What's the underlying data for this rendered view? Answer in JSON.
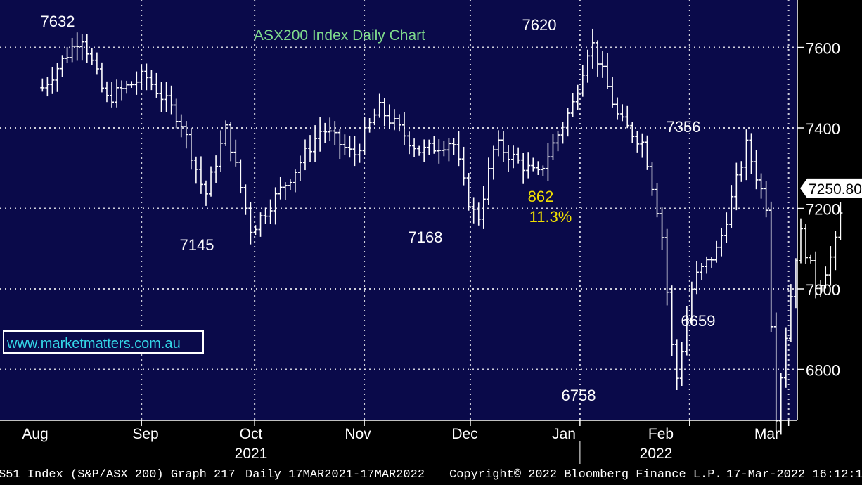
{
  "chart_data": {
    "type": "ohlc",
    "title": "ASX200 Index Daily Chart",
    "y_ticks": [
      6800,
      7000,
      7200,
      7400,
      7600
    ],
    "ylim": [
      6680,
      7780
    ],
    "x_months": [
      "Aug",
      "Sep",
      "Oct",
      "Nov",
      "Dec",
      "Jan",
      "Feb",
      "Mar"
    ],
    "x_years": [
      "2021",
      "2022"
    ],
    "last_price": "7250.80",
    "annotations": [
      {
        "text": "7632",
        "value": 7632,
        "kind": "high"
      },
      {
        "text": "7145",
        "value": 7145,
        "kind": "low"
      },
      {
        "text": "7168",
        "value": 7168,
        "kind": "low"
      },
      {
        "text": "7620",
        "value": 7620,
        "kind": "high"
      },
      {
        "text": "6758",
        "value": 6758,
        "kind": "low"
      },
      {
        "text": "7356",
        "value": 7356,
        "kind": "high"
      },
      {
        "text": "6659",
        "value": 6659,
        "kind": "low"
      },
      {
        "text": "862",
        "kind": "move"
      },
      {
        "text": "11.3%",
        "kind": "move"
      }
    ],
    "watermark": "www.marketmatters.com.au",
    "key_points": [
      {
        "date": "2021-08-02",
        "close": 7500
      },
      {
        "date": "2021-08-13",
        "close": 7632
      },
      {
        "date": "2021-08-20",
        "close": 7470
      },
      {
        "date": "2021-08-31",
        "close": 7530
      },
      {
        "date": "2021-09-10",
        "close": 7420
      },
      {
        "date": "2021-09-17",
        "close": 7230
      },
      {
        "date": "2021-09-23",
        "close": 7400
      },
      {
        "date": "2021-09-30",
        "close": 7145
      },
      {
        "date": "2021-10-12",
        "close": 7290
      },
      {
        "date": "2021-10-20",
        "close": 7400
      },
      {
        "date": "2021-10-29",
        "close": 7330
      },
      {
        "date": "2021-11-05",
        "close": 7450
      },
      {
        "date": "2021-11-17",
        "close": 7340
      },
      {
        "date": "2021-11-26",
        "close": 7370
      },
      {
        "date": "2021-11-30",
        "close": 7230
      },
      {
        "date": "2021-12-03",
        "close": 7168
      },
      {
        "date": "2021-12-08",
        "close": 7360
      },
      {
        "date": "2021-12-20",
        "close": 7280
      },
      {
        "date": "2021-12-30",
        "close": 7460
      },
      {
        "date": "2022-01-04",
        "close": 7620
      },
      {
        "date": "2022-01-12",
        "close": 7420
      },
      {
        "date": "2022-01-19",
        "close": 7360
      },
      {
        "date": "2022-01-24",
        "close": 7150
      },
      {
        "date": "2022-01-28",
        "close": 6758
      },
      {
        "date": "2022-02-02",
        "close": 7020
      },
      {
        "date": "2022-02-09",
        "close": 7100
      },
      {
        "date": "2022-02-17",
        "close": 7356
      },
      {
        "date": "2022-02-23",
        "close": 7200
      },
      {
        "date": "2022-02-25",
        "close": 6659
      },
      {
        "date": "2022-03-04",
        "close": 7150
      },
      {
        "date": "2022-03-09",
        "close": 7000
      },
      {
        "date": "2022-03-14",
        "close": 7100
      },
      {
        "date": "2022-03-17",
        "close": 7250
      }
    ]
  },
  "footer": {
    "security": "S51 Index (S&P/ASX 200) Graph 217",
    "range": "Daily 17MAR2021-17MAR2022",
    "copyright": "Copyright© 2022 Bloomberg Finance L.P.",
    "timestamp": "17-Mar-2022 16:12:1"
  },
  "colors": {
    "plot_bg": "#0a0a4a",
    "bars": "#ffffff",
    "title": "#7fdc8c",
    "move_label": "#f0e000",
    "grid": "#ffffff"
  }
}
